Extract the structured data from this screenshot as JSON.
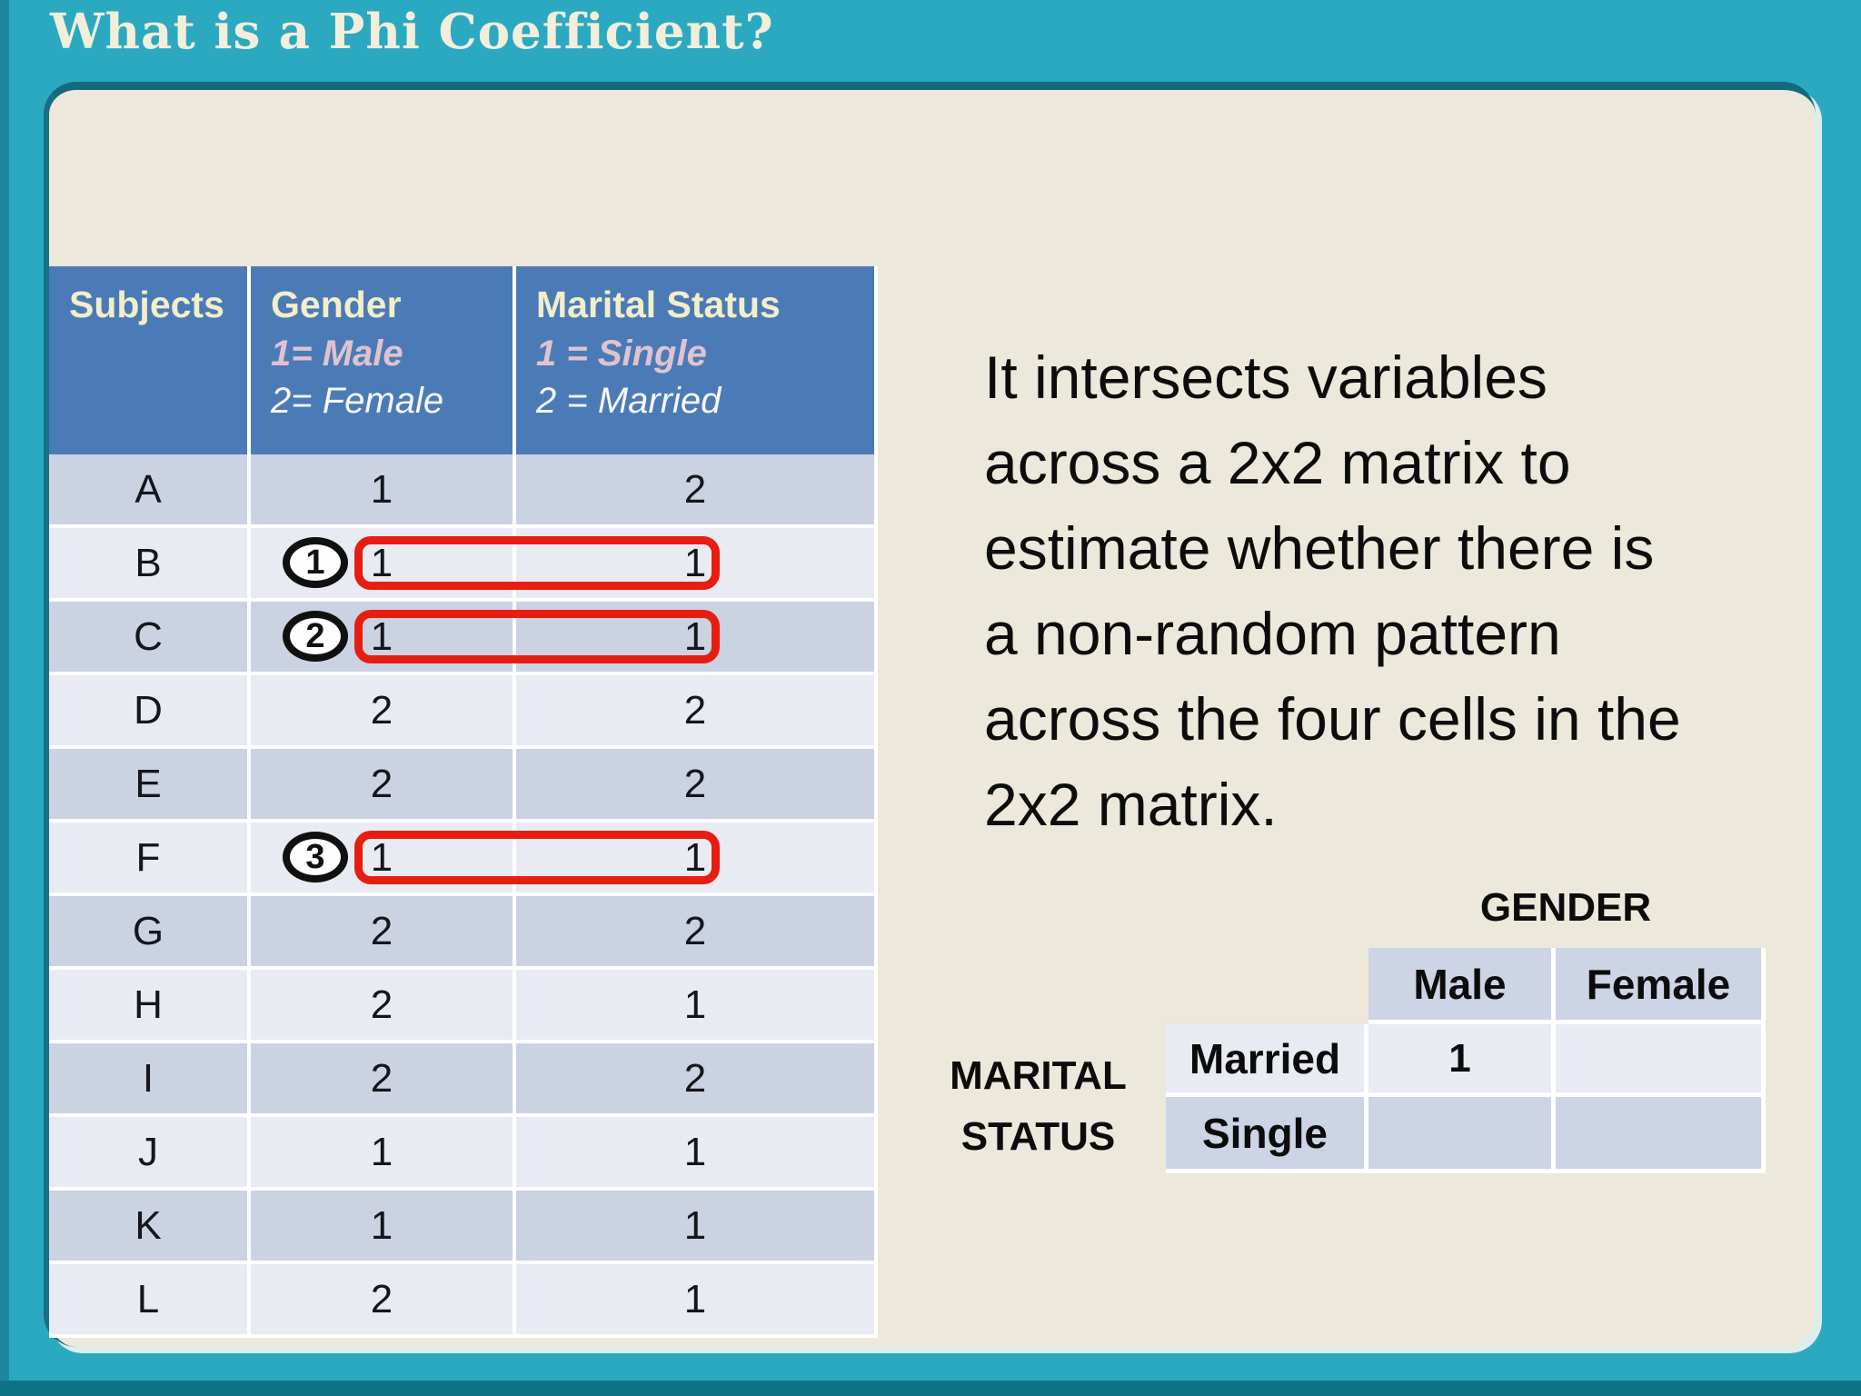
{
  "title": "What is a Phi Coefficient?",
  "paragraph": "It intersects variables\nacross a 2x2 matrix to\nestimate whether there is\na non-random pattern\nacross the four cells in the\n2x2 matrix.",
  "data_table": {
    "columns": [
      {
        "title": "Subjects",
        "sub1": "",
        "sub2": ""
      },
      {
        "title": "Gender",
        "sub1": "1= Male",
        "sub2": "2= Female"
      },
      {
        "title": "Marital Status",
        "sub1": "1 = Single",
        "sub2": "2 = Married"
      }
    ],
    "rows": [
      {
        "subject": "A",
        "gender": "1",
        "marital": "2",
        "highlight": false,
        "badge": ""
      },
      {
        "subject": "B",
        "gender": "1",
        "marital": "1",
        "highlight": true,
        "badge": "1"
      },
      {
        "subject": "C",
        "gender": "1",
        "marital": "1",
        "highlight": true,
        "badge": "2"
      },
      {
        "subject": "D",
        "gender": "2",
        "marital": "2",
        "highlight": false,
        "badge": ""
      },
      {
        "subject": "E",
        "gender": "2",
        "marital": "2",
        "highlight": false,
        "badge": ""
      },
      {
        "subject": "F",
        "gender": "1",
        "marital": "1",
        "highlight": true,
        "badge": "3"
      },
      {
        "subject": "G",
        "gender": "2",
        "marital": "2",
        "highlight": false,
        "badge": ""
      },
      {
        "subject": "H",
        "gender": "2",
        "marital": "1",
        "highlight": false,
        "badge": ""
      },
      {
        "subject": "I",
        "gender": "2",
        "marital": "2",
        "highlight": false,
        "badge": ""
      },
      {
        "subject": "J",
        "gender": "1",
        "marital": "1",
        "highlight": false,
        "badge": ""
      },
      {
        "subject": "K",
        "gender": "1",
        "marital": "1",
        "highlight": false,
        "badge": ""
      },
      {
        "subject": "L",
        "gender": "2",
        "marital": "1",
        "highlight": false,
        "badge": ""
      }
    ]
  },
  "matrix": {
    "gender_label": "GENDER",
    "marital_label_line1": "MARITAL",
    "marital_label_line2": "STATUS",
    "col_headers": [
      "Male",
      "Female"
    ],
    "rows": [
      {
        "label": "Married",
        "values": [
          "1",
          ""
        ]
      },
      {
        "label": "Single",
        "values": [
          "",
          ""
        ]
      }
    ]
  },
  "colors": {
    "background_teal": "#2ba9c0",
    "frame_dark_teal": "#0e7286",
    "panel_cream": "#ece8db",
    "table_header_blue": "#4b7bb6",
    "row_dark": "#cbd2e2",
    "row_light": "#e9ebf3",
    "header_title_text": "#f2eec9",
    "header_sub_pink": "#e0c3ce",
    "highlight_red": "#e81d12",
    "title_cream": "#f3eeda"
  }
}
